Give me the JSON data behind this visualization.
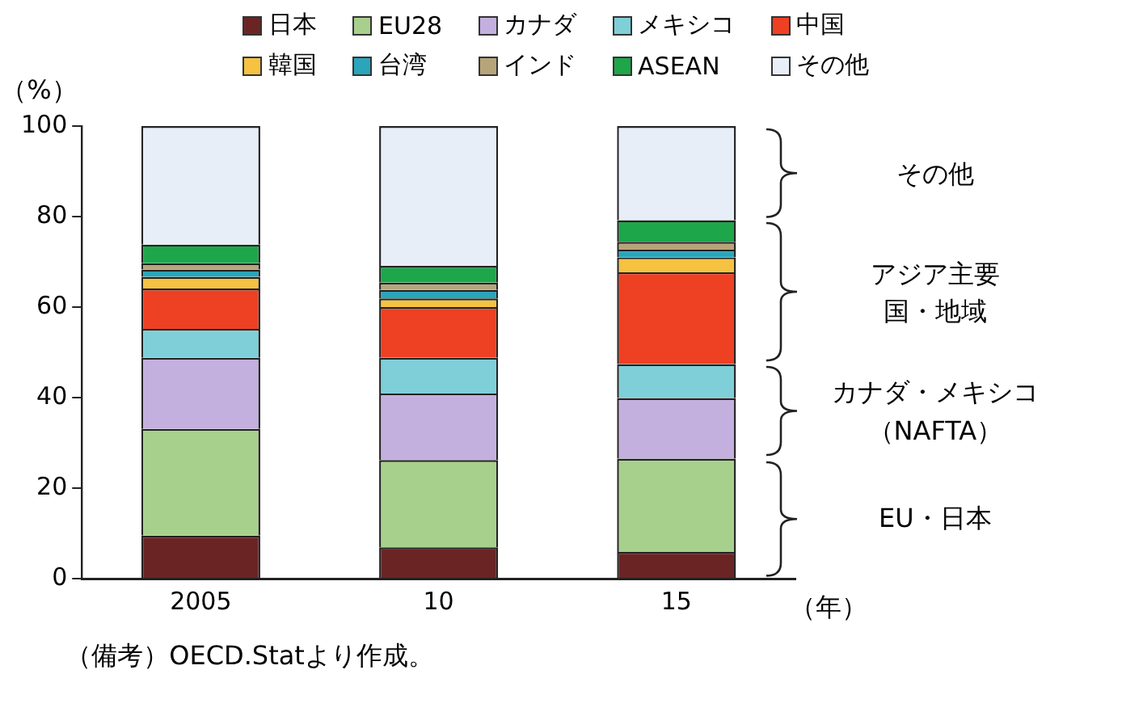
{
  "chart_data": {
    "type": "bar",
    "stacked": true,
    "ylabel": "（%）",
    "xlabel": "（年）",
    "categories": [
      "2005",
      "10",
      "15"
    ],
    "ylim": [
      0,
      100
    ],
    "yticks": [
      0,
      20,
      40,
      60,
      80,
      100
    ],
    "grid": false,
    "legend": "top",
    "series": [
      {
        "name": "日本",
        "color": "#6b2424",
        "values": [
          9.5,
          6.9,
          5.9
        ]
      },
      {
        "name": "EU28",
        "color": "#a8d08d",
        "values": [
          23.6,
          19.3,
          20.6
        ]
      },
      {
        "name": "カナダ",
        "color": "#c3b0de",
        "values": [
          15.7,
          14.7,
          13.4
        ]
      },
      {
        "name": "メキシコ",
        "color": "#7fcfd8",
        "values": [
          6.4,
          7.9,
          7.5
        ]
      },
      {
        "name": "中国",
        "color": "#ee4023",
        "values": [
          8.9,
          11.2,
          20.3
        ]
      },
      {
        "name": "韓国",
        "color": "#f5c242",
        "values": [
          2.6,
          1.9,
          3.3
        ]
      },
      {
        "name": "台湾",
        "color": "#2aa5bb",
        "values": [
          1.6,
          1.9,
          1.7
        ]
      },
      {
        "name": "インド",
        "color": "#b7a57a",
        "values": [
          1.4,
          1.6,
          1.7
        ]
      },
      {
        "name": "ASEAN",
        "color": "#1ea64b",
        "values": [
          4.1,
          3.7,
          4.8
        ]
      },
      {
        "name": "その他",
        "color": "#e8eef7",
        "values": [
          26.2,
          30.9,
          20.8
        ]
      }
    ],
    "annotations": [
      "その他",
      "アジア主要国・地域",
      "カナダ・メキシコ（NAFTA）",
      "EU・日本",
      "（備考）OECD.Statより作成。"
    ]
  }
}
